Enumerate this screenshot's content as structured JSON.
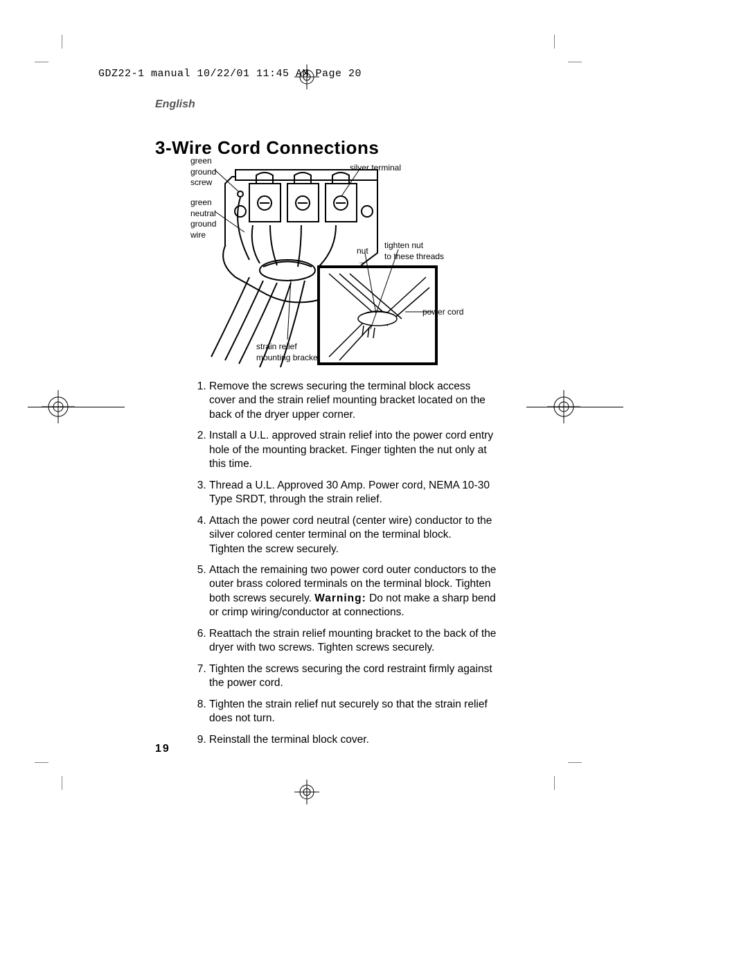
{
  "header": "GDZ22-1 manual  10/22/01  11:45 AM  Page 20",
  "language": "English",
  "title": "3-Wire Cord Connections",
  "diagram_labels": {
    "green_ground_screw": "green\nground\nscrew",
    "green_neutral_ground_wire": "green\nneutral\nground\nwire",
    "silver_terminal": "silver terminal",
    "nut": "nut",
    "tighten_nut": "tighten nut\nto these threads",
    "power_cord": "power cord",
    "strain_relief": "strain relief\nmounting bracket"
  },
  "steps": [
    "Remove the screws securing the terminal block access cover and the strain relief mounting bracket located on the back of the dryer upper corner.",
    "Install a U.L. approved strain relief into the power cord entry hole of the mounting bracket. Finger tighten the nut only at this time.",
    "Thread a U.L. Approved 30 Amp. Power cord, NEMA 10-30 Type SRDT, through the strain relief.",
    "Attach the power cord neutral (center wire) conductor to the silver colored center terminal on the terminal block.\nTighten the screw securely.",
    "Attach the remaining two power cord outer conductors to the outer brass colored terminals on the terminal block. Tighten both screws securely. <span class=\"warn\">Warning:</span> Do not make a sharp bend or crimp wiring/conductor at connections.",
    "Reattach the strain relief mounting bracket to the back of the dryer with two screws. Tighten screws securely.",
    "Tighten the screws securing the cord restraint firmly against the power cord.",
    "Tighten the strain relief nut securely so that the strain relief does not turn.",
    "Reinstall the terminal block cover."
  ],
  "page_number": "19"
}
